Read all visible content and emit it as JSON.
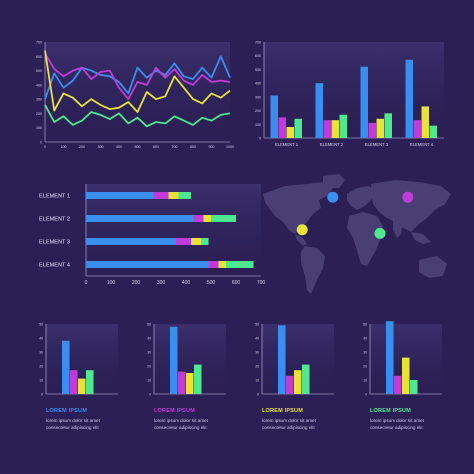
{
  "colors": {
    "background": "#2b1f55",
    "panel": "#3a2e6b",
    "blue": "#3a8ef0",
    "magenta": "#c13bd8",
    "yellow": "#e8e23a",
    "green": "#4ee88e",
    "map": "#4a3f75"
  },
  "line_chart": {
    "chart_data": {
      "type": "line",
      "x": [
        0,
        50,
        100,
        150,
        200,
        250,
        300,
        350,
        400,
        450,
        500,
        550,
        600,
        650,
        700,
        750,
        800,
        850,
        900,
        950,
        1000
      ],
      "x_ticks": [
        "0",
        "100",
        "200",
        "300",
        "400",
        "500",
        "600",
        "700",
        "800",
        "900",
        "1000"
      ],
      "y_ticks": [
        "0",
        "100",
        "200",
        "300",
        "400",
        "500",
        "600",
        "700"
      ],
      "ylim": [
        0,
        700
      ],
      "xlim": [
        0,
        1000
      ],
      "series": [
        {
          "color": "#3a8ef0",
          "values": [
            300,
            480,
            380,
            430,
            520,
            500,
            470,
            460,
            420,
            340,
            520,
            450,
            500,
            470,
            550,
            460,
            440,
            520,
            450,
            600,
            450
          ]
        },
        {
          "color": "#c13bd8",
          "values": [
            620,
            510,
            460,
            500,
            520,
            440,
            490,
            500,
            380,
            300,
            420,
            400,
            520,
            450,
            510,
            430,
            400,
            470,
            420,
            430,
            420
          ]
        },
        {
          "color": "#e8e23a",
          "values": [
            640,
            220,
            340,
            310,
            250,
            300,
            260,
            230,
            240,
            280,
            210,
            350,
            300,
            320,
            460,
            380,
            300,
            270,
            340,
            310,
            360
          ]
        },
        {
          "color": "#4ee88e",
          "values": [
            260,
            140,
            180,
            120,
            150,
            210,
            190,
            160,
            200,
            130,
            170,
            110,
            140,
            130,
            180,
            150,
            120,
            170,
            150,
            190,
            200
          ]
        }
      ]
    }
  },
  "bar_chart_top": {
    "chart_data": {
      "type": "bar",
      "categories": [
        "ELEMENT 1",
        "ELEMENT 2",
        "ELEMENT 3",
        "ELEMENT 4"
      ],
      "y_ticks": [
        "0",
        "100",
        "200",
        "300",
        "400",
        "500",
        "600",
        "700"
      ],
      "ylim": [
        0,
        700
      ],
      "series": [
        {
          "color": "#3a8ef0",
          "values": [
            310,
            400,
            520,
            570
          ]
        },
        {
          "color": "#c13bd8",
          "values": [
            150,
            130,
            110,
            130
          ]
        },
        {
          "color": "#e8e23a",
          "values": [
            80,
            130,
            140,
            230
          ]
        },
        {
          "color": "#4ee88e",
          "values": [
            140,
            170,
            180,
            90
          ]
        }
      ]
    }
  },
  "hbar_chart": {
    "chart_data": {
      "type": "bar",
      "orientation": "horizontal",
      "categories": [
        "ELEMENT 1",
        "ELEMENT 2",
        "ELEMENT 3",
        "ELEMENT 4"
      ],
      "x_ticks": [
        "0",
        "100",
        "200",
        "300",
        "400",
        "500",
        "600",
        "700"
      ],
      "xlim": [
        0,
        700
      ],
      "series": [
        {
          "color": "#3a8ef0",
          "values": [
            270,
            430,
            360,
            490
          ]
        },
        {
          "color": "#c13bd8",
          "values": [
            60,
            40,
            60,
            40
          ]
        },
        {
          "color": "#e8e23a",
          "values": [
            40,
            30,
            40,
            30
          ]
        },
        {
          "color": "#4ee88e",
          "values": [
            50,
            100,
            30,
            110
          ]
        }
      ]
    }
  },
  "map": {
    "markers": [
      {
        "color": "#3a8ef0",
        "lon": -40,
        "lat": 55
      },
      {
        "color": "#c13bd8",
        "lon": 95,
        "lat": 55
      },
      {
        "color": "#e8e23a",
        "lon": -95,
        "lat": 10
      },
      {
        "color": "#4ee88e",
        "lon": 45,
        "lat": 5
      }
    ]
  },
  "mini_charts": [
    {
      "title": "LOREM IPSUM",
      "title_color": "#3a8ef0",
      "text1": "lorem ipsum dolor sit amet",
      "text2": "consectetur adipiscing elit",
      "chart_data": {
        "type": "bar",
        "y_ticks": [
          "0",
          "10",
          "20",
          "30",
          "40",
          "50"
        ],
        "ylim": [
          0,
          50
        ],
        "values": [
          38,
          17,
          11,
          17
        ],
        "colors": [
          "#3a8ef0",
          "#c13bd8",
          "#e8e23a",
          "#4ee88e"
        ]
      }
    },
    {
      "title": "LOREM IPSUM",
      "title_color": "#c13bd8",
      "text1": "lorem ipsum dolor sit amet",
      "text2": "consectetur adipiscing elit",
      "chart_data": {
        "type": "bar",
        "y_ticks": [
          "0",
          "10",
          "20",
          "30",
          "40",
          "50"
        ],
        "ylim": [
          0,
          50
        ],
        "values": [
          48,
          16,
          15,
          21
        ],
        "colors": [
          "#3a8ef0",
          "#c13bd8",
          "#e8e23a",
          "#4ee88e"
        ]
      }
    },
    {
      "title": "LOREM IPSUM",
      "title_color": "#e8e23a",
      "text1": "lorem ipsum dolor sit amet",
      "text2": "consectetur adipiscing elit",
      "chart_data": {
        "type": "bar",
        "y_ticks": [
          "0",
          "10",
          "20",
          "30",
          "40",
          "50"
        ],
        "ylim": [
          0,
          50
        ],
        "values": [
          49,
          13,
          17,
          21
        ],
        "colors": [
          "#3a8ef0",
          "#c13bd8",
          "#e8e23a",
          "#4ee88e"
        ]
      }
    },
    {
      "title": "LOREM IPSUM",
      "title_color": "#4ee88e",
      "text1": "lorem ipsum dolor sit amet",
      "text2": "consectetur adipiscing elit",
      "chart_data": {
        "type": "bar",
        "y_ticks": [
          "0",
          "10",
          "20",
          "30",
          "40",
          "50"
        ],
        "ylim": [
          0,
          50
        ],
        "values": [
          52,
          13,
          26,
          10
        ],
        "colors": [
          "#3a8ef0",
          "#c13bd8",
          "#e8e23a",
          "#4ee88e"
        ]
      }
    }
  ]
}
